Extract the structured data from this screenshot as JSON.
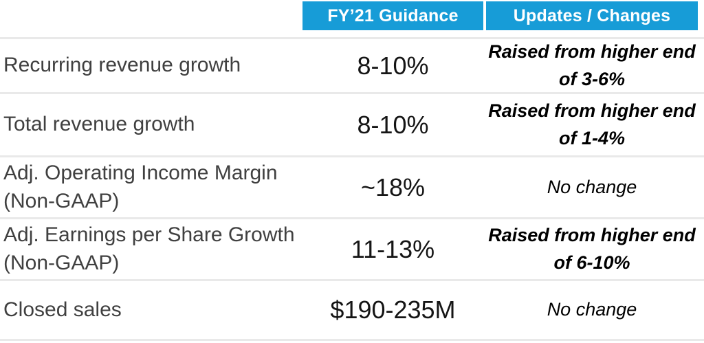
{
  "title": "FY'21 guidance summary table",
  "colors": {
    "header_bg": "#179CD7",
    "header_text": "#FFFFFF",
    "divider": "#E9E9E9",
    "metric_text": "#404040",
    "value_text": "#151515",
    "update_text": "#000000"
  },
  "table": {
    "headers": [
      {
        "label": "FY’21 Guidance"
      },
      {
        "label": "Updates / Changes"
      }
    ],
    "rows": [
      {
        "metric": "Recurring revenue growth",
        "guidance": "8-10%",
        "update": "Raised from higher end\nof 3-6%"
      },
      {
        "metric": "Total revenue growth",
        "guidance": "8-10%",
        "update": "Raised from higher end\nof 1-4%"
      },
      {
        "metric": "Adj. Operating Income Margin\n(Non-GAAP)",
        "guidance": "~18%",
        "update": "No change"
      },
      {
        "metric": "Adj. Earnings per Share Growth\n(Non-GAAP)",
        "guidance": "11-13%",
        "update": "Raised from higher end\nof 6-10%"
      },
      {
        "metric": "Closed sales",
        "guidance": "$190-235M",
        "update": "No change"
      }
    ]
  }
}
